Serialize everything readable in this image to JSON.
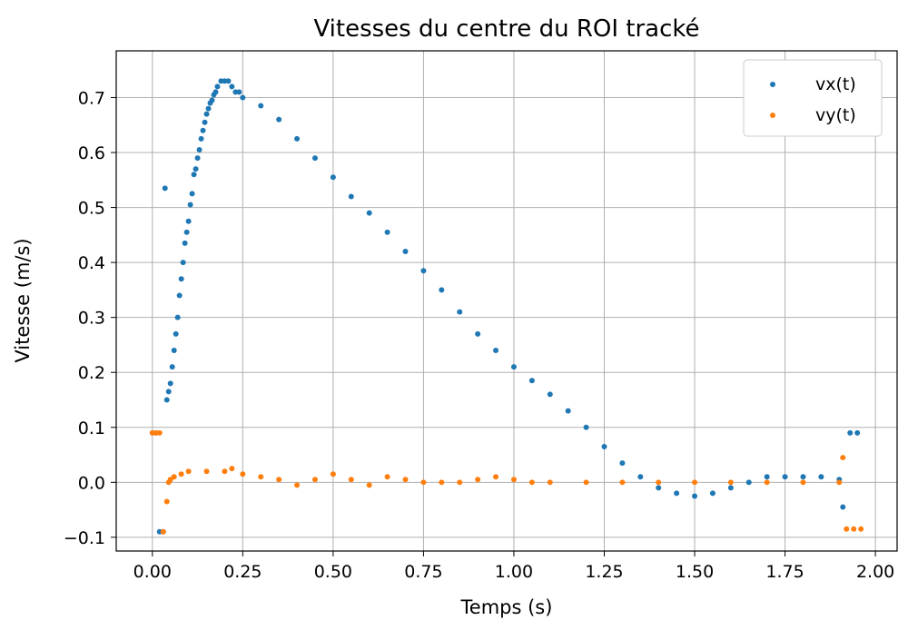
{
  "chart_data": {
    "type": "scatter",
    "title": "Vitesses du centre du ROI tracké",
    "xlabel": "Temps (s)",
    "ylabel": "Vitesse (m/s)",
    "xlim": [
      -0.1,
      2.06
    ],
    "ylim": [
      -0.125,
      0.785
    ],
    "xticks": [
      0.0,
      0.25,
      0.5,
      0.75,
      1.0,
      1.25,
      1.5,
      1.75,
      2.0
    ],
    "xtick_labels": [
      "0.00",
      "0.25",
      "0.50",
      "0.75",
      "1.00",
      "1.25",
      "1.50",
      "1.75",
      "2.00"
    ],
    "yticks": [
      -0.1,
      0.0,
      0.1,
      0.2,
      0.3,
      0.4,
      0.5,
      0.6,
      0.7
    ],
    "ytick_labels": [
      "−0.1",
      "0.0",
      "0.1",
      "0.2",
      "0.3",
      "0.4",
      "0.5",
      "0.6",
      "0.7"
    ],
    "grid": true,
    "legend_position": "top-right",
    "series": [
      {
        "name": "vx(t)",
        "color": "#1f77b4",
        "points": [
          [
            0.0,
            0.09
          ],
          [
            0.01,
            0.09
          ],
          [
            0.02,
            -0.09
          ],
          [
            0.03,
            -0.09
          ],
          [
            0.035,
            0.535
          ],
          [
            0.04,
            0.15
          ],
          [
            0.045,
            0.165
          ],
          [
            0.05,
            0.18
          ],
          [
            0.055,
            0.21
          ],
          [
            0.06,
            0.24
          ],
          [
            0.065,
            0.27
          ],
          [
            0.07,
            0.3
          ],
          [
            0.075,
            0.34
          ],
          [
            0.08,
            0.37
          ],
          [
            0.085,
            0.4
          ],
          [
            0.09,
            0.435
          ],
          [
            0.095,
            0.455
          ],
          [
            0.1,
            0.475
          ],
          [
            0.105,
            0.505
          ],
          [
            0.11,
            0.525
          ],
          [
            0.115,
            0.56
          ],
          [
            0.12,
            0.57
          ],
          [
            0.125,
            0.59
          ],
          [
            0.13,
            0.605
          ],
          [
            0.135,
            0.625
          ],
          [
            0.14,
            0.64
          ],
          [
            0.145,
            0.655
          ],
          [
            0.15,
            0.67
          ],
          [
            0.155,
            0.68
          ],
          [
            0.16,
            0.69
          ],
          [
            0.165,
            0.695
          ],
          [
            0.17,
            0.705
          ],
          [
            0.175,
            0.71
          ],
          [
            0.18,
            0.72
          ],
          [
            0.19,
            0.73
          ],
          [
            0.2,
            0.73
          ],
          [
            0.21,
            0.73
          ],
          [
            0.22,
            0.72
          ],
          [
            0.23,
            0.71
          ],
          [
            0.24,
            0.71
          ],
          [
            0.25,
            0.7
          ],
          [
            0.3,
            0.685
          ],
          [
            0.35,
            0.66
          ],
          [
            0.4,
            0.625
          ],
          [
            0.45,
            0.59
          ],
          [
            0.5,
            0.555
          ],
          [
            0.55,
            0.52
          ],
          [
            0.6,
            0.49
          ],
          [
            0.65,
            0.455
          ],
          [
            0.7,
            0.42
          ],
          [
            0.75,
            0.385
          ],
          [
            0.8,
            0.35
          ],
          [
            0.85,
            0.31
          ],
          [
            0.9,
            0.27
          ],
          [
            0.95,
            0.24
          ],
          [
            1.0,
            0.21
          ],
          [
            1.05,
            0.185
          ],
          [
            1.1,
            0.16
          ],
          [
            1.15,
            0.13
          ],
          [
            1.2,
            0.1
          ],
          [
            1.25,
            0.065
          ],
          [
            1.3,
            0.035
          ],
          [
            1.35,
            0.01
          ],
          [
            1.4,
            -0.01
          ],
          [
            1.45,
            -0.02
          ],
          [
            1.5,
            -0.025
          ],
          [
            1.55,
            -0.02
          ],
          [
            1.6,
            -0.01
          ],
          [
            1.65,
            0.0
          ],
          [
            1.7,
            0.01
          ],
          [
            1.75,
            0.01
          ],
          [
            1.8,
            0.01
          ],
          [
            1.85,
            0.01
          ],
          [
            1.9,
            0.005
          ],
          [
            1.91,
            -0.045
          ],
          [
            1.93,
            0.09
          ],
          [
            1.95,
            0.09
          ]
        ]
      },
      {
        "name": "vy(t)",
        "color": "#ff7f0e",
        "points": [
          [
            0.0,
            0.09
          ],
          [
            0.01,
            0.09
          ],
          [
            0.02,
            0.09
          ],
          [
            0.03,
            -0.09
          ],
          [
            0.04,
            -0.035
          ],
          [
            0.045,
            0.0
          ],
          [
            0.05,
            0.005
          ],
          [
            0.06,
            0.01
          ],
          [
            0.08,
            0.015
          ],
          [
            0.1,
            0.02
          ],
          [
            0.15,
            0.02
          ],
          [
            0.2,
            0.02
          ],
          [
            0.22,
            0.025
          ],
          [
            0.25,
            0.015
          ],
          [
            0.3,
            0.01
          ],
          [
            0.35,
            0.005
          ],
          [
            0.4,
            -0.005
          ],
          [
            0.45,
            0.005
          ],
          [
            0.5,
            0.015
          ],
          [
            0.55,
            0.005
          ],
          [
            0.6,
            -0.005
          ],
          [
            0.65,
            0.01
          ],
          [
            0.7,
            0.005
          ],
          [
            0.75,
            0.0
          ],
          [
            0.8,
            0.0
          ],
          [
            0.85,
            0.0
          ],
          [
            0.9,
            0.005
          ],
          [
            0.95,
            0.01
          ],
          [
            1.0,
            0.005
          ],
          [
            1.05,
            0.0
          ],
          [
            1.1,
            0.0
          ],
          [
            1.2,
            0.0
          ],
          [
            1.3,
            0.0
          ],
          [
            1.4,
            0.0
          ],
          [
            1.5,
            0.0
          ],
          [
            1.6,
            0.0
          ],
          [
            1.7,
            0.0
          ],
          [
            1.8,
            0.0
          ],
          [
            1.9,
            0.0
          ],
          [
            1.91,
            0.045
          ],
          [
            1.92,
            -0.085
          ],
          [
            1.94,
            -0.085
          ],
          [
            1.96,
            -0.085
          ]
        ]
      }
    ]
  }
}
